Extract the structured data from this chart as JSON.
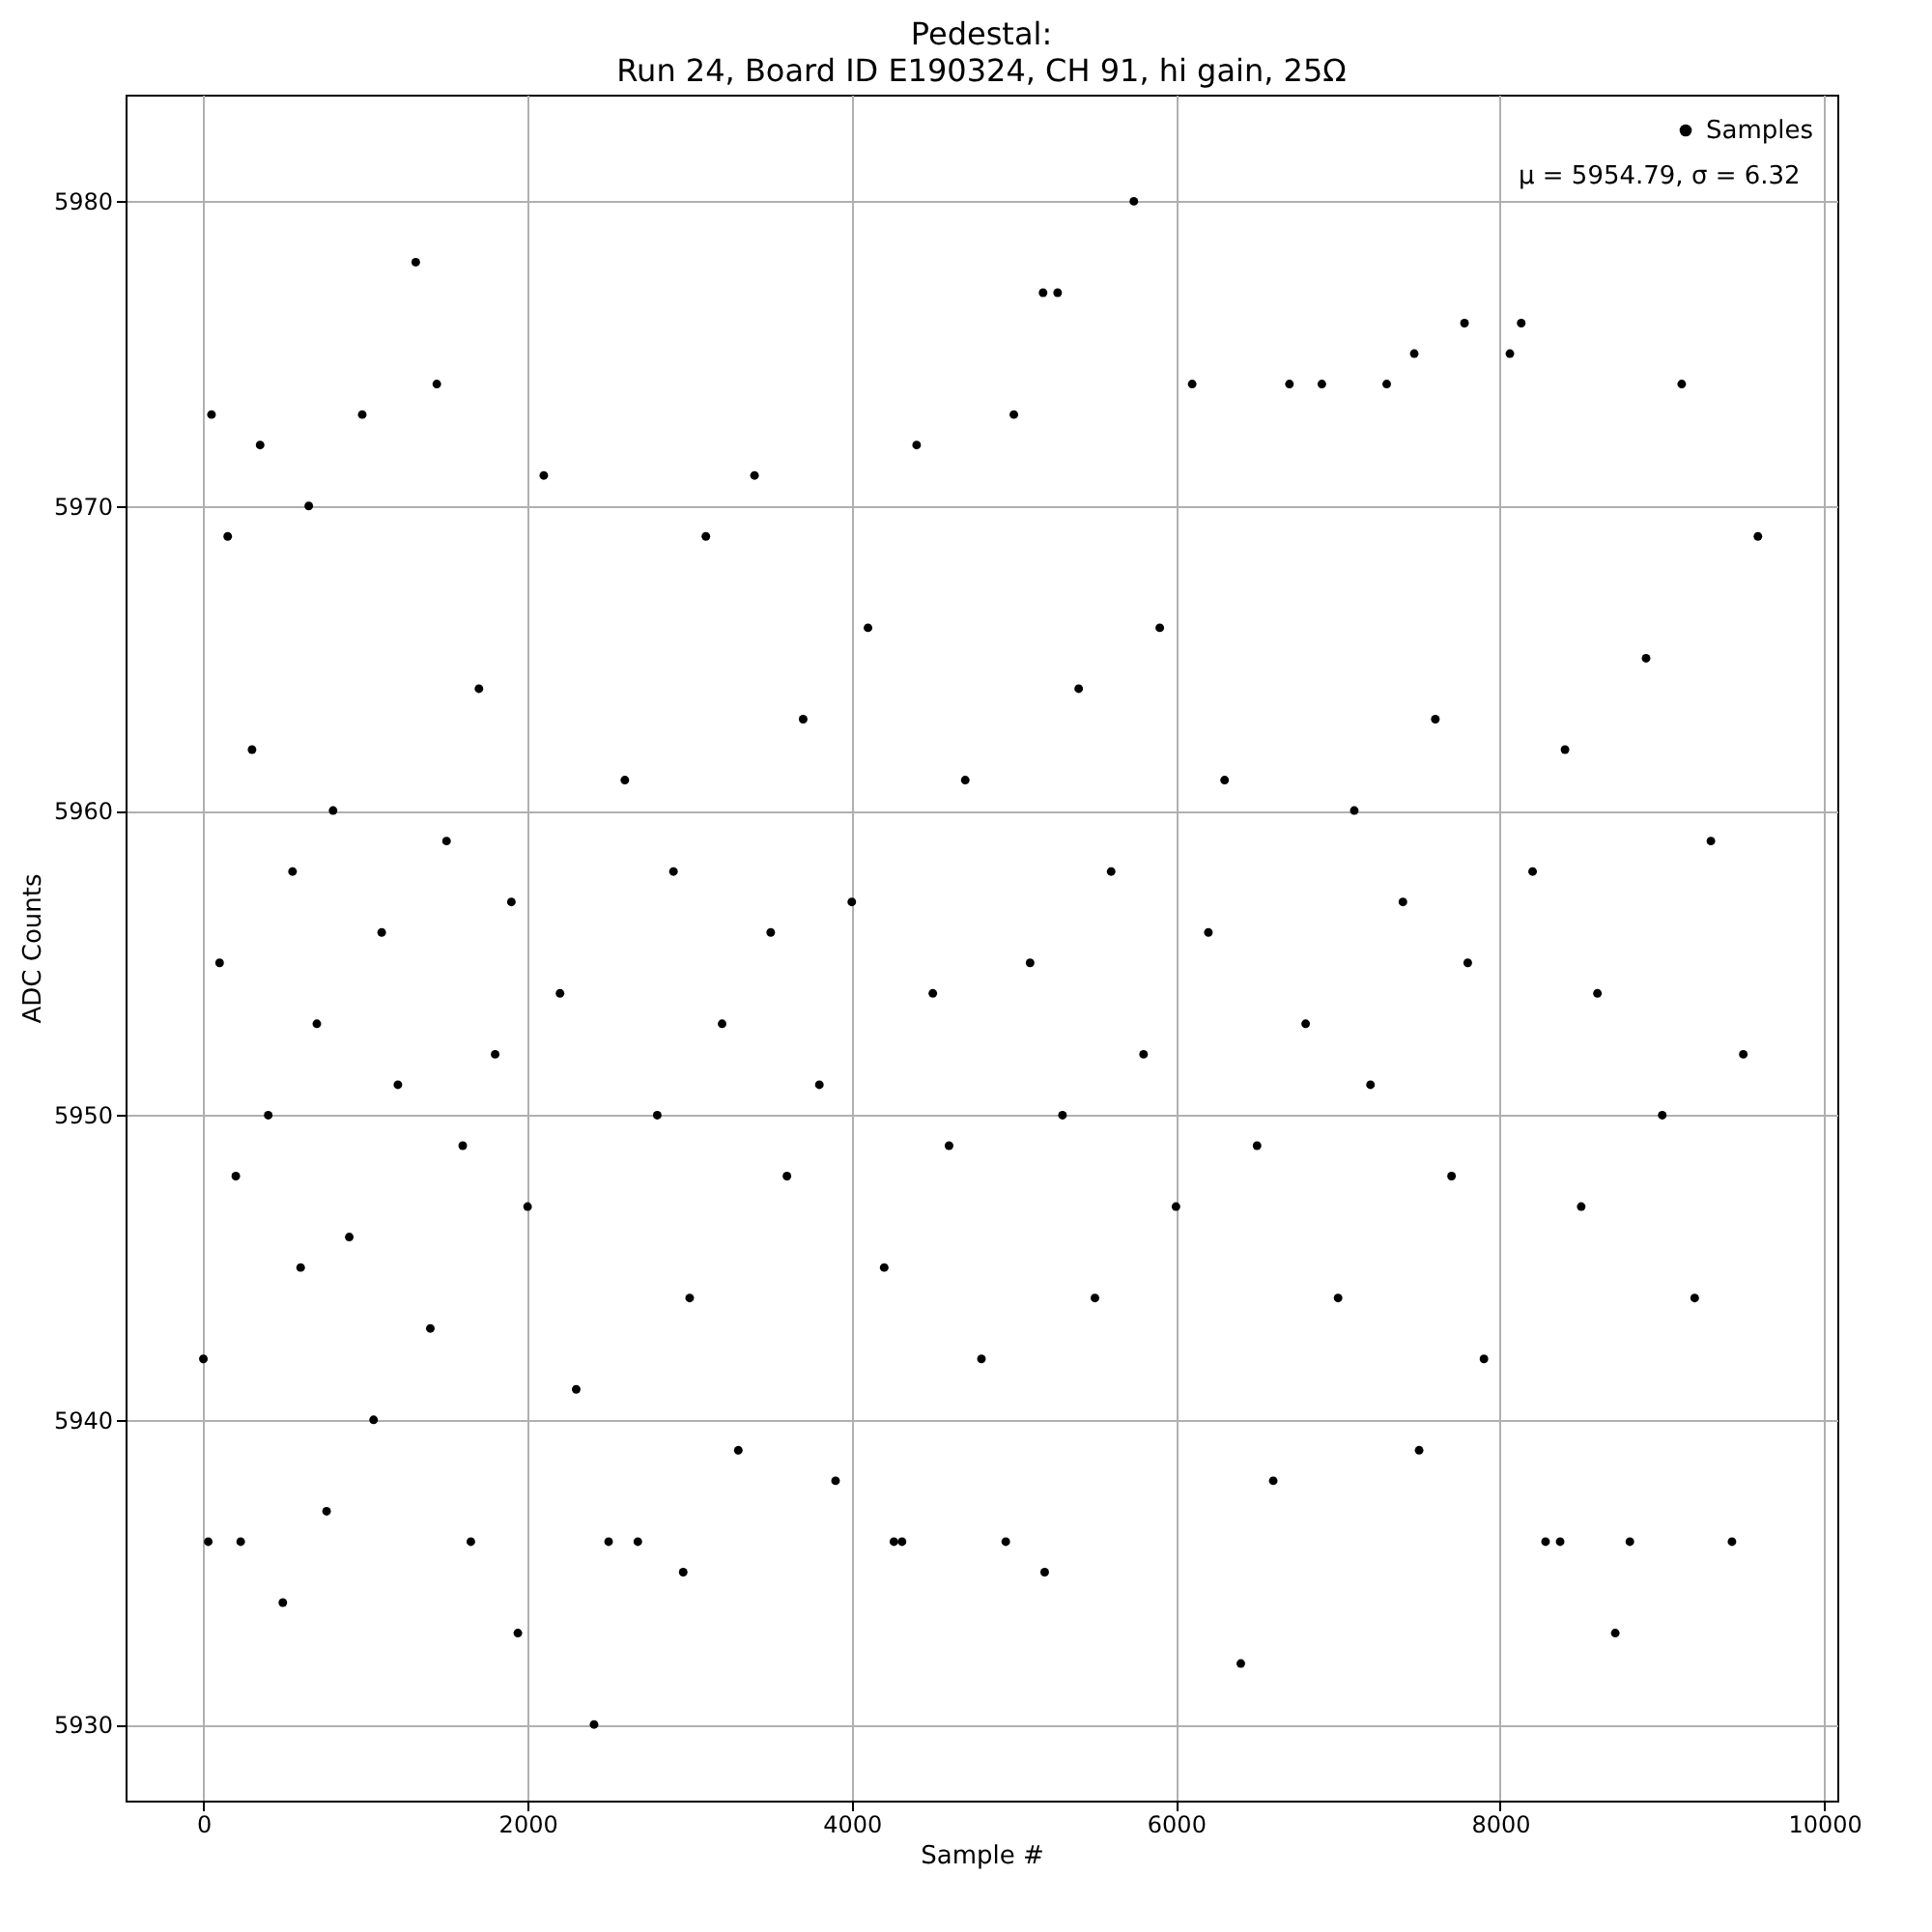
{
  "chart_data": {
    "type": "scatter",
    "title": "Pedestal:",
    "subtitle": "Run 24, Board ID E190324, CH 91, hi gain, 25Ω",
    "xlabel": "Sample #",
    "ylabel": "ADC Counts",
    "x": [
      0,
      30,
      50,
      100,
      150,
      200,
      230,
      300,
      350,
      400,
      490,
      550,
      600,
      650,
      700,
      760,
      800,
      900,
      980,
      1050,
      1100,
      1200,
      1310,
      1400,
      1440,
      1500,
      1600,
      1650,
      1700,
      1800,
      1900,
      1940,
      2000,
      2100,
      2200,
      2300,
      2410,
      2500,
      2600,
      2680,
      2800,
      2900,
      2960,
      3000,
      3100,
      3200,
      3300,
      3400,
      3500,
      3600,
      3700,
      3800,
      3900,
      4000,
      4100,
      4200,
      4260,
      4310,
      4400,
      4500,
      4600,
      4700,
      4800,
      4950,
      5000,
      5100,
      5180,
      5190,
      5270,
      5300,
      5400,
      5500,
      5600,
      5740,
      5800,
      5900,
      6000,
      6100,
      6200,
      6300,
      6400,
      6500,
      6600,
      6700,
      6800,
      6900,
      7000,
      7100,
      7200,
      7300,
      7400,
      7470,
      7500,
      7600,
      7700,
      7780,
      7800,
      7900,
      8060,
      8130,
      8200,
      8280,
      8370,
      8400,
      8500,
      8600,
      8710,
      8800,
      8900,
      9000,
      9120,
      9200,
      9300,
      9430,
      9500,
      9590
    ],
    "series": [
      {
        "name": "Samples",
        "color": "#000000",
        "values": [
          5942,
          5936,
          5973,
          5955,
          5969,
          5948,
          5936,
          5962,
          5972,
          5950,
          5934,
          5958,
          5945,
          5970,
          5953,
          5937,
          5960,
          5946,
          5973,
          5940,
          5956,
          5951,
          5978,
          5943,
          5974,
          5959,
          5949,
          5936,
          5964,
          5952,
          5957,
          5933,
          5947,
          5971,
          5954,
          5941,
          5930,
          5936,
          5961,
          5936,
          5950,
          5958,
          5935,
          5944,
          5969,
          5953,
          5939,
          5971,
          5956,
          5948,
          5963,
          5951,
          5938,
          5957,
          5966,
          5945,
          5936,
          5936,
          5972,
          5954,
          5949,
          5961,
          5942,
          5936,
          5973,
          5955,
          5977,
          5935,
          5977,
          5950,
          5964,
          5944,
          5958,
          5980,
          5952,
          5966,
          5947,
          5974,
          5956,
          5961,
          5932,
          5949,
          5938,
          5974,
          5953,
          5974,
          5944,
          5960,
          5951,
          5974,
          5957,
          5975,
          5939,
          5963,
          5948,
          5976,
          5955,
          5942,
          5975,
          5976,
          5958,
          5936,
          5936,
          5962,
          5947,
          5954,
          5933,
          5936,
          5965,
          5950,
          5974,
          5944,
          5959,
          5936,
          5952,
          5969
        ]
      }
    ],
    "annotations": [
      "μ = 5954.79, σ = 6.32"
    ],
    "xlim": [
      -480,
      10080
    ],
    "xticks": [
      0,
      2000,
      4000,
      6000,
      8000,
      10000
    ],
    "ylim": [
      5927.5,
      5983.5
    ],
    "yticks": [
      5930,
      5940,
      5950,
      5960,
      5970,
      5980
    ],
    "grid": true,
    "legend": "top right",
    "marker": "circle"
  }
}
